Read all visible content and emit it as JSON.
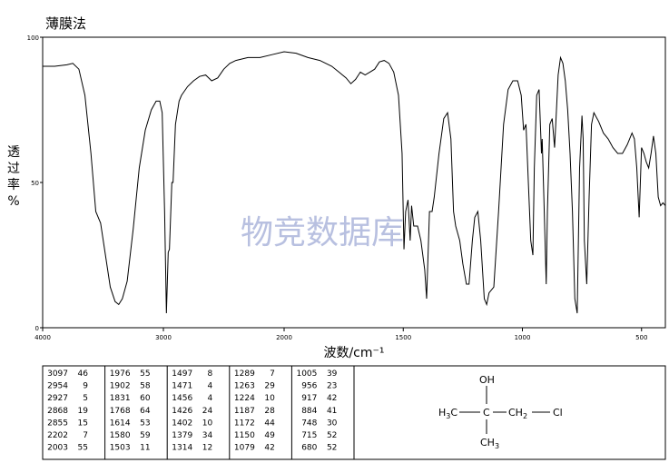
{
  "chart_data": {
    "type": "line",
    "title": "薄膜法",
    "y_label_chars": [
      "透",
      "过",
      "率",
      "%"
    ],
    "x_label": "波数/cm⁻¹",
    "watermark": "物竞数据库",
    "xlim": [
      4000,
      400
    ],
    "x_scale_break": 2000,
    "xticks": [
      4000,
      3000,
      2000,
      1500,
      1000,
      500
    ],
    "ylim": [
      0,
      100
    ],
    "yticks": [
      0,
      50,
      100
    ],
    "series": [
      {
        "name": null,
        "color": "#000000",
        "x": [
          4000,
          3900,
          3800,
          3750,
          3700,
          3650,
          3600,
          3560,
          3520,
          3480,
          3440,
          3400,
          3370,
          3340,
          3300,
          3250,
          3200,
          3150,
          3100,
          3060,
          3030,
          3010,
          2990,
          2975,
          2960,
          2950,
          2930,
          2920,
          2900,
          2870,
          2850,
          2800,
          2750,
          2700,
          2650,
          2600,
          2550,
          2500,
          2450,
          2400,
          2300,
          2200,
          2100,
          2000,
          1950,
          1900,
          1850,
          1800,
          1770,
          1740,
          1720,
          1700,
          1680,
          1660,
          1640,
          1620,
          1600,
          1580,
          1560,
          1540,
          1520,
          1505,
          1497,
          1490,
          1480,
          1471,
          1465,
          1456,
          1440,
          1426,
          1410,
          1402,
          1390,
          1379,
          1370,
          1350,
          1330,
          1314,
          1300,
          1289,
          1280,
          1263,
          1250,
          1235,
          1224,
          1210,
          1200,
          1187,
          1175,
          1160,
          1150,
          1140,
          1120,
          1100,
          1079,
          1060,
          1040,
          1020,
          1005,
          995,
          985,
          975,
          965,
          956,
          950,
          940,
          930,
          920,
          917,
          910,
          900,
          895,
          885,
          875,
          865,
          860,
          850,
          840,
          830,
          820,
          810,
          800,
          790,
          780,
          770,
          760,
          750,
          745,
          740,
          730,
          720,
          710,
          700,
          680,
          660,
          640,
          620,
          600,
          580,
          560,
          540,
          530,
          520,
          510,
          500,
          490,
          480,
          470,
          460,
          450,
          440,
          430,
          420,
          410,
          400
        ],
        "values": [
          90,
          90,
          90.5,
          91,
          89,
          80,
          60,
          40,
          36,
          25,
          14,
          9,
          8,
          10,
          16,
          34,
          55,
          68,
          75,
          78,
          78,
          74,
          40,
          5,
          26,
          27,
          50,
          50,
          70,
          78,
          80,
          83,
          85,
          86.5,
          87,
          85,
          86,
          89,
          91,
          92,
          93,
          93,
          94,
          95,
          94.5,
          93,
          92,
          90,
          88,
          86,
          84,
          85.5,
          88,
          87,
          88,
          89,
          91.5,
          92,
          91,
          88,
          80,
          60,
          27,
          40,
          44,
          30,
          42,
          35,
          35,
          30,
          20,
          10,
          40,
          40,
          45,
          60,
          72,
          74,
          65,
          40,
          35,
          30,
          22,
          15,
          15,
          30,
          38,
          40,
          30,
          10,
          8,
          12,
          14,
          40,
          70,
          82,
          85,
          85,
          80,
          68,
          70,
          50,
          30,
          25,
          55,
          80,
          82,
          60,
          65,
          45,
          15,
          40,
          70,
          72,
          62,
          70,
          87,
          93,
          91,
          85,
          75,
          60,
          40,
          10,
          5,
          55,
          73,
          65,
          30,
          15,
          45,
          70,
          74,
          71,
          67,
          65,
          62,
          60,
          60,
          63,
          67,
          65,
          55,
          38,
          62,
          60,
          57,
          55,
          60,
          66,
          60,
          45,
          42,
          43,
          42
        ]
      }
    ]
  },
  "peak_table": [
    [
      [
        3097,
        46
      ],
      [
        2954,
        9
      ],
      [
        2927,
        5
      ],
      [
        2868,
        19
      ],
      [
        2855,
        15
      ],
      [
        2202,
        7
      ],
      [
        2003,
        55
      ]
    ],
    [
      [
        1976,
        55
      ],
      [
        1902,
        58
      ],
      [
        1831,
        60
      ],
      [
        1768,
        64
      ],
      [
        1614,
        53
      ],
      [
        1580,
        59
      ],
      [
        1503,
        11
      ]
    ],
    [
      [
        1497,
        8
      ],
      [
        1471,
        4
      ],
      [
        1456,
        4
      ],
      [
        1426,
        24
      ],
      [
        1402,
        10
      ],
      [
        1379,
        34
      ],
      [
        1314,
        12
      ]
    ],
    [
      [
        1289,
        7
      ],
      [
        1263,
        29
      ],
      [
        1224,
        10
      ],
      [
        1187,
        28
      ],
      [
        1172,
        44
      ],
      [
        1150,
        49
      ],
      [
        1079,
        42
      ]
    ],
    [
      [
        1005,
        39
      ],
      [
        956,
        23
      ],
      [
        917,
        42
      ],
      [
        884,
        41
      ],
      [
        748,
        30
      ],
      [
        715,
        52
      ],
      [
        680,
        52
      ]
    ]
  ],
  "structure": {
    "oh": "OH",
    "left": [
      "H",
      "3",
      "C"
    ],
    "center": "C",
    "right": [
      "CH",
      "2"
    ],
    "cl": "Cl",
    "bottom": [
      "CH",
      "3"
    ]
  }
}
